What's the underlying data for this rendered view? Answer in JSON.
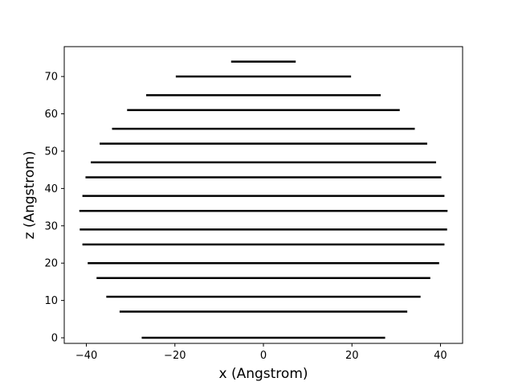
{
  "chart_data": {
    "type": "line",
    "title": "",
    "xlabel": "x (Angstrom)",
    "ylabel": "z (Angstrom)",
    "xlim": [
      -45,
      45
    ],
    "ylim": [
      -1.5,
      78
    ],
    "grid": false,
    "legend": "none",
    "line_color": "#000000",
    "xticks": [
      -40,
      -20,
      0,
      20,
      40
    ],
    "yticks": [
      0,
      10,
      20,
      30,
      40,
      50,
      60,
      70
    ],
    "xtick_labels": [
      "−40",
      "−20",
      "0",
      "20",
      "40"
    ],
    "ytick_labels": [
      "0",
      "10",
      "20",
      "30",
      "40",
      "50",
      "60",
      "70"
    ],
    "segments": [
      {
        "z": 0,
        "x_start": -27.5,
        "x_end": 27.5
      },
      {
        "z": 7,
        "x_start": -32.5,
        "x_end": 32.5
      },
      {
        "z": 11,
        "x_start": -35.5,
        "x_end": 35.5
      },
      {
        "z": 16,
        "x_start": -37.7,
        "x_end": 37.7
      },
      {
        "z": 20,
        "x_start": -39.7,
        "x_end": 39.7
      },
      {
        "z": 25,
        "x_start": -40.9,
        "x_end": 40.9
      },
      {
        "z": 29,
        "x_start": -41.5,
        "x_end": 41.5
      },
      {
        "z": 34,
        "x_start": -41.6,
        "x_end": 41.6
      },
      {
        "z": 38,
        "x_start": -40.9,
        "x_end": 40.9
      },
      {
        "z": 43,
        "x_start": -40.2,
        "x_end": 40.2
      },
      {
        "z": 47,
        "x_start": -39.0,
        "x_end": 39.0
      },
      {
        "z": 52,
        "x_start": -37.0,
        "x_end": 37.0
      },
      {
        "z": 56,
        "x_start": -34.2,
        "x_end": 34.2
      },
      {
        "z": 61,
        "x_start": -30.8,
        "x_end": 30.8
      },
      {
        "z": 65,
        "x_start": -26.5,
        "x_end": 26.5
      },
      {
        "z": 70,
        "x_start": -19.8,
        "x_end": 19.8
      },
      {
        "z": 74,
        "x_start": -7.3,
        "x_end": 7.3
      }
    ]
  }
}
